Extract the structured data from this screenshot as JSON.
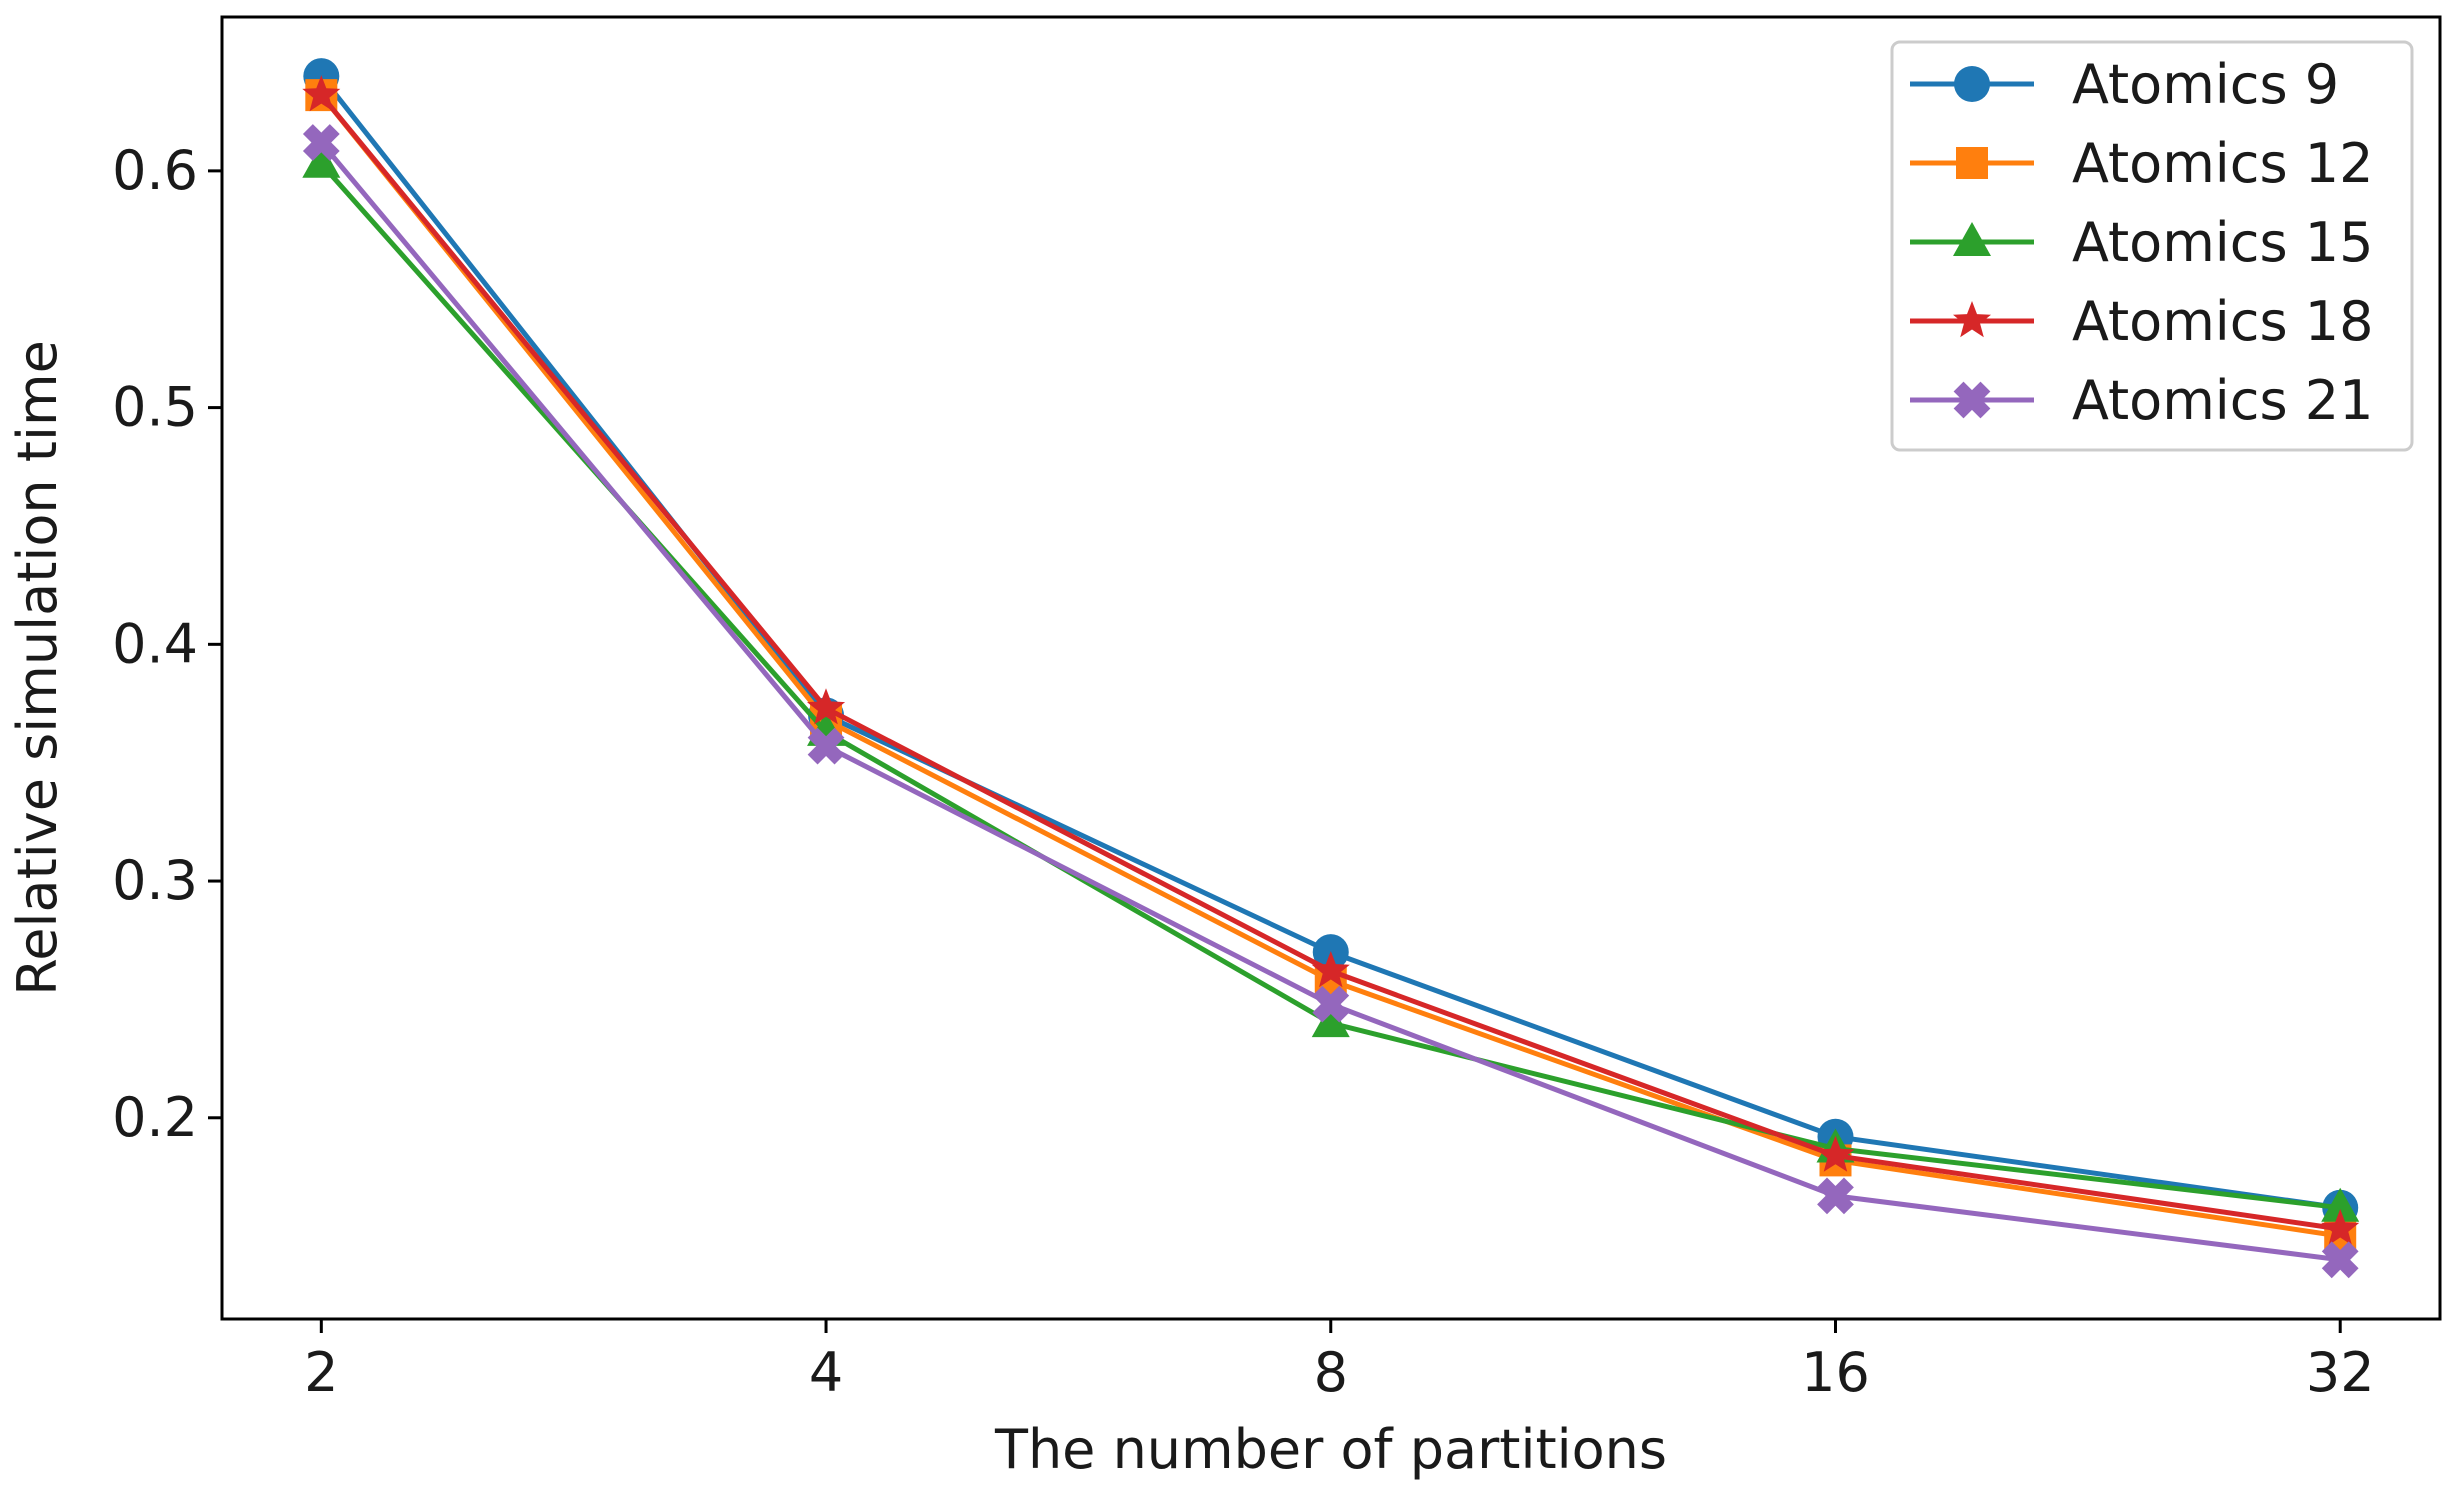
{
  "chart_data": {
    "type": "line",
    "title": "",
    "xlabel": "The number of partitions",
    "ylabel": "Relative simulation time",
    "x_scale": "log2",
    "categories": [
      "2",
      "4",
      "8",
      "16",
      "32"
    ],
    "x": [
      2,
      4,
      8,
      16,
      32
    ],
    "xlim": [
      1.745,
      36.7
    ],
    "ylim": [
      0.115,
      0.665
    ],
    "yticks": [
      0.2,
      0.3,
      0.4,
      0.5,
      0.6
    ],
    "ytick_labels": [
      "0.2",
      "0.3",
      "0.4",
      "0.5",
      "0.6"
    ],
    "grid": false,
    "legend_position": "top-right",
    "series": [
      {
        "name": "Atomics 9",
        "color": "#1f77b4",
        "marker": "circle",
        "values": [
          0.64,
          0.37,
          0.27,
          0.192,
          0.162
        ]
      },
      {
        "name": "Atomics 12",
        "color": "#ff7f0e",
        "marker": "square",
        "values": [
          0.632,
          0.368,
          0.258,
          0.182,
          0.15
        ]
      },
      {
        "name": "Atomics 15",
        "color": "#2ca02c",
        "marker": "triangle",
        "values": [
          0.603,
          0.363,
          0.24,
          0.187,
          0.162
        ]
      },
      {
        "name": "Atomics 18",
        "color": "#d62728",
        "marker": "star",
        "values": [
          0.632,
          0.373,
          0.262,
          0.184,
          0.153
        ]
      },
      {
        "name": "Atomics 21",
        "color": "#9467bd",
        "marker": "x-filled",
        "values": [
          0.612,
          0.357,
          0.248,
          0.167,
          0.14
        ]
      }
    ]
  }
}
